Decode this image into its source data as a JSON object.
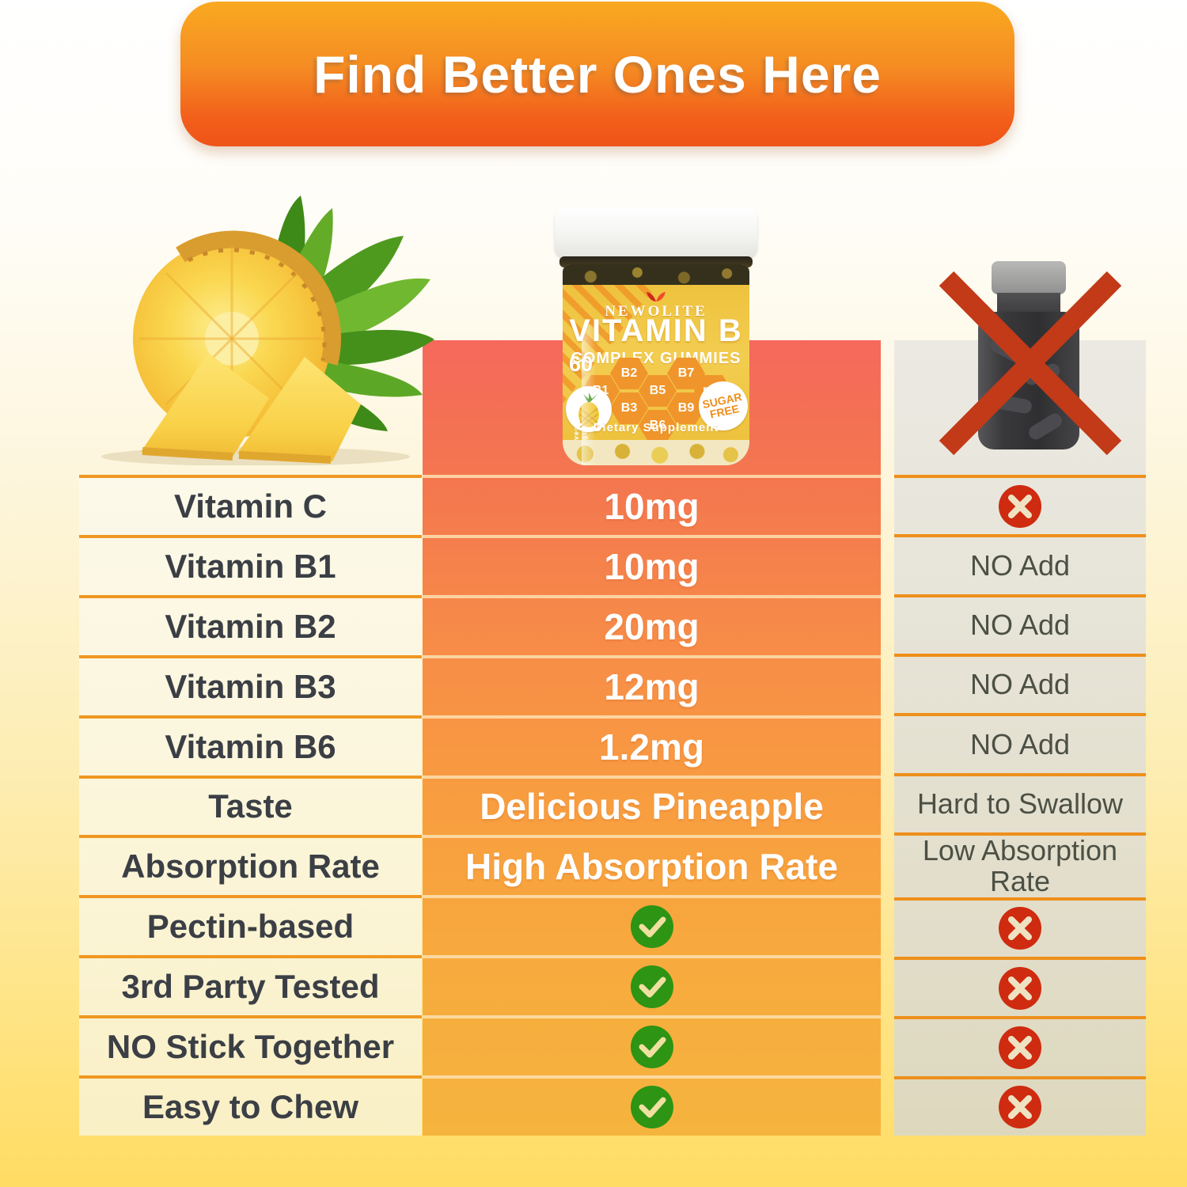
{
  "banner": {
    "title": "Find Better Ones Here"
  },
  "product": {
    "brand": "NEWOLITE",
    "title": "VITAMIN B",
    "subtitle": "COMPLEX GUMMIES",
    "count": "60",
    "count_label": "vegan gummies",
    "badges": [
      "B1",
      "B2",
      "B3",
      "B5",
      "B6",
      "B7",
      "B9",
      "B12"
    ],
    "sugar_free_line1": "SUGAR",
    "sugar_free_line2": "FREE",
    "supplement": "Dietary Supplement"
  },
  "table": {
    "rows": [
      {
        "label": "Vitamin C",
        "ours_type": "text",
        "ours": "10mg",
        "theirs_type": "cross",
        "theirs": ""
      },
      {
        "label": "Vitamin B1",
        "ours_type": "text",
        "ours": "10mg",
        "theirs_type": "text",
        "theirs": "NO Add"
      },
      {
        "label": "Vitamin B2",
        "ours_type": "text",
        "ours": "20mg",
        "theirs_type": "text",
        "theirs": "NO Add"
      },
      {
        "label": "Vitamin B3",
        "ours_type": "text",
        "ours": "12mg",
        "theirs_type": "text",
        "theirs": "NO Add"
      },
      {
        "label": "Vitamin B6",
        "ours_type": "text",
        "ours": "1.2mg",
        "theirs_type": "text",
        "theirs": "NO Add"
      },
      {
        "label": "Taste",
        "ours_type": "text",
        "ours": "Delicious Pineapple",
        "theirs_type": "text",
        "theirs": "Hard to Swallow"
      },
      {
        "label": "Absorption Rate",
        "ours_type": "text",
        "ours": "High Absorption Rate",
        "theirs_type": "text",
        "theirs": "Low Absorption Rate"
      },
      {
        "label": "Pectin-based",
        "ours_type": "check",
        "ours": "",
        "theirs_type": "cross",
        "theirs": ""
      },
      {
        "label": "3rd Party Tested",
        "ours_type": "check",
        "ours": "",
        "theirs_type": "cross",
        "theirs": ""
      },
      {
        "label": "NO Stick Together",
        "ours_type": "check",
        "ours": "",
        "theirs_type": "cross",
        "theirs": ""
      },
      {
        "label": "Easy to Chew",
        "ours_type": "check",
        "ours": "",
        "theirs_type": "cross",
        "theirs": ""
      }
    ]
  },
  "icons": {
    "check": "check-icon",
    "cross": "cross-icon",
    "big_cross": "red-cross-icon"
  },
  "colors": {
    "banner_top": "#f9a921",
    "banner_bottom": "#ef5318",
    "column_product_top": "#f5695b",
    "column_product_bottom": "#f5b43e",
    "column_competitor": "#e4e1d2",
    "column_labels": "#fbf5d9",
    "divider_orange": "#ef9722",
    "check_green": "#2d9414",
    "cross_red": "#ce2b10",
    "label_text": "#3b3f45",
    "competitor_text": "#4c5044",
    "page_bottom_yellow": "#ffdc63"
  }
}
